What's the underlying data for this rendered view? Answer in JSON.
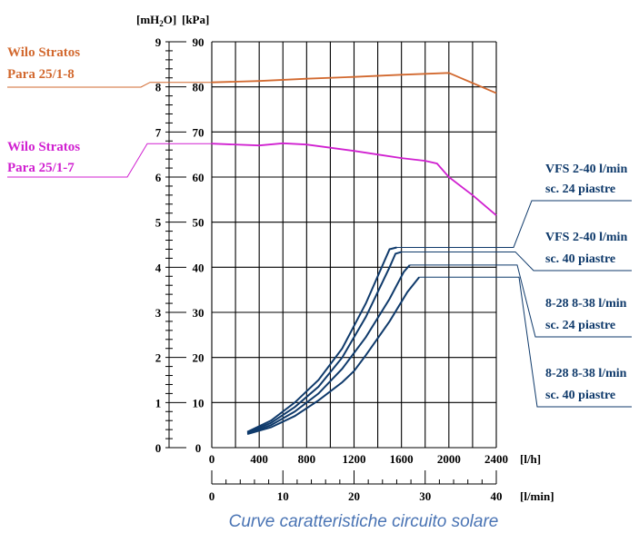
{
  "chart_data": {
    "type": "line",
    "units": {
      "left_y_primary": "[mH",
      "left_y_sub": "2",
      "left_y_suffix": "O]",
      "left_y_secondary": "[kPa]",
      "x_primary": "[l/h]",
      "x_secondary": "[l/min]"
    },
    "y_ticks_m": [
      "0",
      "1",
      "2",
      "3",
      "4",
      "5",
      "6",
      "7",
      "8",
      "9"
    ],
    "y_ticks_kpa": [
      "0",
      "10",
      "20",
      "30",
      "40",
      "50",
      "60",
      "70",
      "80",
      "90"
    ],
    "x_ticks_lh": [
      "0",
      "400",
      "800",
      "1200",
      "1600",
      "2000",
      "2400"
    ],
    "x_ticks_lmin": [
      "0",
      "10",
      "20",
      "30",
      "40"
    ],
    "xlim_lh": [
      0,
      2400
    ],
    "ylim_kpa": [
      0,
      90
    ],
    "grid": true,
    "pump_curves": [
      {
        "name_line1": "Wilo Stratos",
        "name_line2": "Para 25/1-8",
        "color": "#d2692f",
        "points": [
          [
            0,
            81
          ],
          [
            400,
            81.3
          ],
          [
            800,
            81.8
          ],
          [
            1200,
            82.2
          ],
          [
            1600,
            82.7
          ],
          [
            2000,
            83.1
          ],
          [
            2400,
            78.6
          ]
        ]
      },
      {
        "name_line1": "Wilo Stratos",
        "name_line2": "Para 25/1-7",
        "color": "#d020d0",
        "points": [
          [
            0,
            67.4
          ],
          [
            400,
            67
          ],
          [
            600,
            67.5
          ],
          [
            800,
            67.2
          ],
          [
            1000,
            66.5
          ],
          [
            1200,
            65.8
          ],
          [
            1400,
            65
          ],
          [
            1600,
            64.2
          ],
          [
            1800,
            63.6
          ],
          [
            1900,
            63
          ],
          [
            2000,
            60
          ],
          [
            2200,
            56
          ],
          [
            2400,
            51.5
          ]
        ]
      }
    ],
    "system_curves": [
      {
        "name_line1": "VFS 2-40 l/min",
        "name_line2": "sc. 24 piastre",
        "color": "#0f3a6b",
        "points": [
          [
            300,
            3.5
          ],
          [
            500,
            6
          ],
          [
            700,
            10
          ],
          [
            900,
            15
          ],
          [
            1100,
            22
          ],
          [
            1300,
            32
          ],
          [
            1500,
            44
          ],
          [
            1560,
            44.4
          ]
        ]
      },
      {
        "name_line1": "VFS 2-40 l/min",
        "name_line2": "sc. 40 piastre",
        "color": "#0f3a6b",
        "points": [
          [
            300,
            3.3
          ],
          [
            500,
            5.5
          ],
          [
            700,
            9
          ],
          [
            900,
            13.5
          ],
          [
            1100,
            20
          ],
          [
            1300,
            29
          ],
          [
            1500,
            40
          ],
          [
            1550,
            43
          ],
          [
            1600,
            43.4
          ]
        ]
      },
      {
        "name_line1": "8-28 8-38 l/min",
        "name_line2": "sc. 24 piastre",
        "color": "#0f3a6b",
        "points": [
          [
            300,
            3.1
          ],
          [
            500,
            5
          ],
          [
            700,
            8
          ],
          [
            900,
            12
          ],
          [
            1100,
            17.5
          ],
          [
            1300,
            24.5
          ],
          [
            1500,
            33
          ],
          [
            1620,
            39
          ],
          [
            1670,
            40.5
          ]
        ]
      },
      {
        "name_line1": "8-28 8-38 l/min",
        "name_line2": "sc. 40 piastre",
        "color": "#0f3a6b",
        "points": [
          [
            300,
            3
          ],
          [
            500,
            4.5
          ],
          [
            700,
            7
          ],
          [
            900,
            10.5
          ],
          [
            1100,
            14.5
          ],
          [
            1200,
            17
          ],
          [
            1300,
            20.5
          ],
          [
            1500,
            28
          ],
          [
            1650,
            34.5
          ],
          [
            1750,
            37.8
          ]
        ]
      }
    ]
  },
  "caption": "Curve caratteristiche circuito solare",
  "colors": {
    "grid": "#000000",
    "system": "#0f3a6b",
    "pump8": "#d2692f",
    "pump7": "#d020d0",
    "caption": "#4a74b4"
  }
}
